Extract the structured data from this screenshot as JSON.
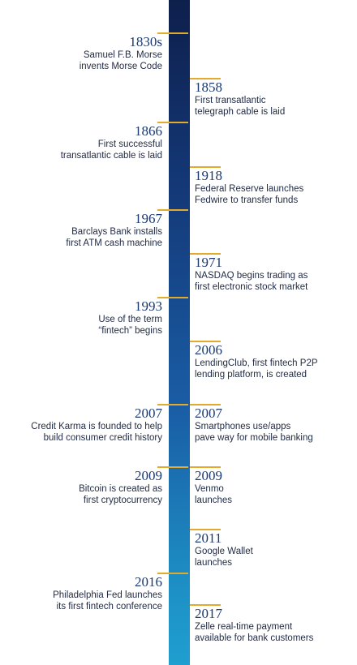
{
  "events": [
    {
      "year": "1830s",
      "text": "Samuel F.B. Morse\ninvents Morse Code"
    },
    {
      "year": "1858",
      "text": "First transatlantic\ntelegraph cable is laid"
    },
    {
      "year": "1866",
      "text": "First successful\ntransatlantic cable is laid"
    },
    {
      "year": "1918",
      "text": "Federal Reserve launches\nFedwire to transfer funds"
    },
    {
      "year": "1967",
      "text": "Barclays Bank installs\nfirst ATM cash machine"
    },
    {
      "year": "1971",
      "text": "NASDAQ begins trading as\nfirst electronic stock market"
    },
    {
      "year": "1993",
      "text": "Use of the term\n“fintech” begins"
    },
    {
      "year": "2006",
      "text": "LendingClub, first fintech P2P\nlending platform, is created"
    },
    {
      "year": "2007",
      "text": "Credit Karma is founded to help\nbuild consumer credit history"
    },
    {
      "year": "2007",
      "text": "Smartphones use/apps\npave way for mobile banking"
    },
    {
      "year": "2009",
      "text": "Bitcoin is created as\nfirst cryptocurrency"
    },
    {
      "year": "2009",
      "text": "Venmo\nlaunches"
    },
    {
      "year": "2011",
      "text": "Google Wallet\nlaunches"
    },
    {
      "year": "2016",
      "text": "Philadelphia Fed launches\nits first fintech conference"
    },
    {
      "year": "2017",
      "text": "Zelle real-time payment\navailable for bank customers"
    }
  ],
  "colors": {
    "spine_top": "#0e1f4c",
    "spine_bottom": "#1f9fcf",
    "tick": "#e3aa2c",
    "year": "#1b3a72"
  }
}
